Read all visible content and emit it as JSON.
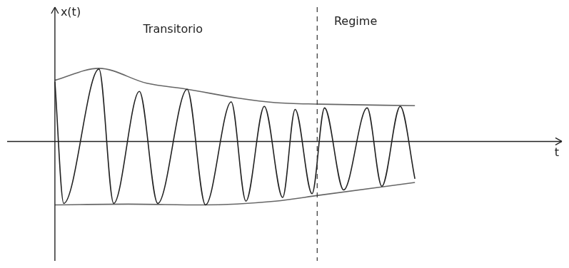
{
  "chart_data": {
    "type": "line",
    "x_label": "t",
    "y_label": "x(t)",
    "xlim": [
      -1.3,
      13.8
    ],
    "ylim": [
      -1.6,
      1.8
    ],
    "tick_labels": false,
    "grid": false,
    "series": [
      {
        "color": "#222222",
        "line_style": "solid",
        "x": [
          0,
          0.24,
          1.2,
          1.6,
          2.3,
          2.8,
          3.6,
          4.1,
          4.8,
          5.2,
          5.7,
          6.2,
          6.54,
          7.0,
          7.34,
          7.86,
          8.5,
          8.9,
          9.4,
          9.8
        ],
        "values": [
          0.8,
          -0.83,
          0.97,
          -0.83,
          0.67,
          -0.83,
          0.7,
          -0.85,
          0.53,
          -0.8,
          0.47,
          -0.75,
          0.43,
          -0.7,
          0.45,
          -0.65,
          0.45,
          -0.6,
          0.47,
          -0.5
        ]
      },
      {
        "color": "#666666",
        "line_style": "solid",
        "x": [
          0,
          1.2,
          2.5,
          3.6,
          5.0,
          6.0,
          7.2,
          9.8
        ],
        "values": [
          0.82,
          0.98,
          0.78,
          0.7,
          0.58,
          0.52,
          0.5,
          0.48
        ]
      },
      {
        "color": "#666666",
        "line_style": "solid",
        "x": [
          0,
          2.0,
          4.0,
          6.0,
          7.2,
          9.8
        ],
        "values": [
          -0.85,
          -0.84,
          -0.85,
          -0.8,
          -0.72,
          -0.55
        ]
      }
    ],
    "vlines": [
      {
        "x": 7.14,
        "line_style": "dashed",
        "color": "#333333"
      }
    ],
    "annotations": [
      {
        "text": "Transitorio",
        "x": 2.4,
        "y": 1.5
      },
      {
        "text": "Regime",
        "x": 7.6,
        "y": 1.6
      }
    ]
  }
}
